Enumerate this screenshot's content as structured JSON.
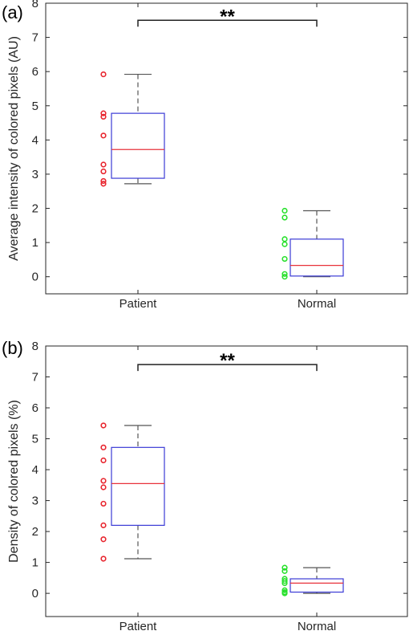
{
  "colors": {
    "box": "#3b3bd6",
    "median": "#e8323b",
    "whisker": "#555555",
    "patient_points": "#e8262f",
    "normal_points": "#27e02b",
    "axis": "#262626",
    "bracket": "#222222"
  },
  "chart_data": [
    {
      "type": "box",
      "panel_label": "(a)",
      "ylabel": "Average intensity of colored pixels (AU)",
      "xlabel": "",
      "categories": [
        "Patient",
        "Normal"
      ],
      "ylim": [
        -0.5,
        8
      ],
      "yticks": [
        "0",
        "1",
        "2",
        "3",
        "4",
        "5",
        "6",
        "7",
        "8"
      ],
      "grid": false,
      "significance": "**",
      "bracket_y": 7.5,
      "boxes": [
        {
          "category": "Patient",
          "min": 2.72,
          "q1": 2.88,
          "median": 3.72,
          "q3": 4.78,
          "max": 5.92
        },
        {
          "category": "Normal",
          "min": 0.0,
          "q1": 0.02,
          "median": 0.33,
          "q3": 1.1,
          "max": 1.93
        }
      ],
      "points": [
        {
          "category": "Patient",
          "values": [
            5.92,
            4.78,
            4.68,
            4.13,
            3.28,
            3.08,
            2.8,
            2.72
          ]
        },
        {
          "category": "Normal",
          "values": [
            1.93,
            1.73,
            1.1,
            0.95,
            0.52,
            0.08,
            0.0
          ]
        }
      ]
    },
    {
      "type": "box",
      "panel_label": "(b)",
      "ylabel": "Density of colored pixels (%)",
      "xlabel": "",
      "categories": [
        "Patient",
        "Normal"
      ],
      "ylim": [
        -0.75,
        8
      ],
      "yticks": [
        "0",
        "1",
        "2",
        "3",
        "4",
        "5",
        "6",
        "7",
        "8"
      ],
      "grid": false,
      "significance": "**",
      "bracket_y": 7.4,
      "boxes": [
        {
          "category": "Patient",
          "min": 1.12,
          "q1": 2.2,
          "median": 3.55,
          "q3": 4.72,
          "max": 5.43
        },
        {
          "category": "Normal",
          "min": 0.0,
          "q1": 0.04,
          "median": 0.33,
          "q3": 0.47,
          "max": 0.83
        }
      ],
      "points": [
        {
          "category": "Patient",
          "values": [
            5.43,
            4.72,
            4.3,
            3.64,
            3.43,
            2.9,
            2.2,
            1.75,
            1.12
          ]
        },
        {
          "category": "Normal",
          "values": [
            0.83,
            0.72,
            0.47,
            0.4,
            0.33,
            0.1,
            0.04,
            0.0
          ]
        }
      ]
    }
  ]
}
